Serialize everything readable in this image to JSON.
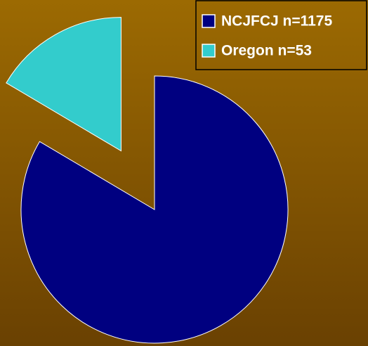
{
  "chart_data": {
    "type": "pie",
    "categories": [
      "NCJFCJ n=1175",
      "Oregon n=53"
    ],
    "values": [
      83.5,
      16.5
    ],
    "colors": [
      "#000080",
      "#33cccc"
    ],
    "legend": "top-right"
  }
}
